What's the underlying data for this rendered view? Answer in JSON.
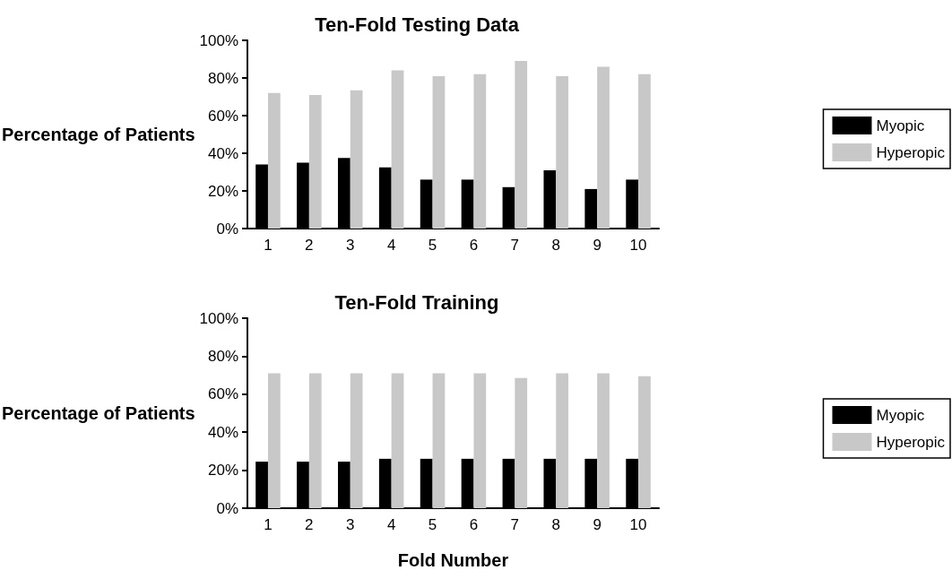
{
  "chart_data": [
    {
      "type": "bar",
      "title": "Ten-Fold Testing Data",
      "ylabel": "Percentage of Patients",
      "categories": [
        "1",
        "2",
        "3",
        "4",
        "5",
        "6",
        "7",
        "8",
        "9",
        "10"
      ],
      "series": [
        {
          "name": "Myopic",
          "color": "#000000",
          "values": [
            34,
            35,
            37.5,
            32.5,
            26,
            26,
            22,
            31,
            21,
            26
          ]
        },
        {
          "name": "Hyperopic",
          "color": "#c8c8c8",
          "values": [
            72,
            71,
            73.5,
            84,
            81,
            82,
            89,
            81,
            86,
            82
          ]
        }
      ],
      "ylim": [
        0,
        100
      ],
      "yticks": [
        {
          "value": 0,
          "label": "0%"
        },
        {
          "value": 20,
          "label": "20%"
        },
        {
          "value": 40,
          "label": "40%"
        },
        {
          "value": 60,
          "label": "60%"
        },
        {
          "value": 80,
          "label": "80%"
        },
        {
          "value": 100,
          "label": "100%"
        }
      ],
      "grid": false,
      "legend": "right"
    },
    {
      "type": "bar",
      "title": "Ten-Fold Training",
      "ylabel": "Percentage of Patients",
      "xlabel": "Fold Number",
      "categories": [
        "1",
        "2",
        "3",
        "4",
        "5",
        "6",
        "7",
        "8",
        "9",
        "10"
      ],
      "series": [
        {
          "name": "Myopic",
          "color": "#000000",
          "values": [
            24.5,
            24.5,
            24.5,
            26,
            26,
            26,
            26,
            26,
            26,
            26
          ]
        },
        {
          "name": "Hyperopic",
          "color": "#c8c8c8",
          "values": [
            71,
            71,
            71,
            71,
            71,
            71,
            68.5,
            71,
            71,
            69.5
          ]
        }
      ],
      "ylim": [
        0,
        100
      ],
      "yticks": [
        {
          "value": 0,
          "label": "0%"
        },
        {
          "value": 20,
          "label": "20%"
        },
        {
          "value": 40,
          "label": "40%"
        },
        {
          "value": 60,
          "label": "60%"
        },
        {
          "value": 80,
          "label": "80%"
        },
        {
          "value": 100,
          "label": "100%"
        }
      ],
      "grid": false,
      "legend": "right"
    }
  ]
}
